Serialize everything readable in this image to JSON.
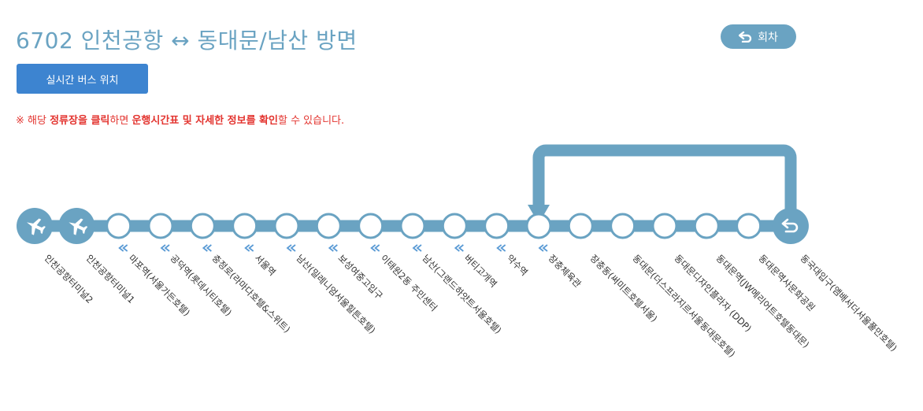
{
  "header": {
    "title": "6702 인천공항 ↔ 동대문/남산 방면",
    "return_button": "회차",
    "live_bus_button": "실시간 버스 위치"
  },
  "notice": {
    "p1": "※ 해당 ",
    "b1": "정류장을 클릭",
    "p2": "하면 ",
    "b2": "운행시간표 및 자세한 정보를 확인",
    "p3": "할 수 있습니다."
  },
  "colors": {
    "route": "#6aa3c2",
    "accent_blue": "#3d84d0",
    "notice_red": "#e3342f",
    "direction_chevron": "#5b9bd5"
  },
  "stops": [
    {
      "name": "인천공항터미널2",
      "icon": "airplane-icon"
    },
    {
      "name": "인천공항터미널1",
      "icon": "airplane-icon"
    },
    {
      "name": "마포역(서울가든호텔)",
      "icon": ""
    },
    {
      "name": "공덕역(롯데시티호텔)",
      "icon": ""
    },
    {
      "name": "충정로(라마다호텔&스위트)",
      "icon": ""
    },
    {
      "name": "서울역",
      "icon": ""
    },
    {
      "name": "남산(밀레니엄서울힐튼호텔)",
      "icon": ""
    },
    {
      "name": "보성여중고입구",
      "icon": ""
    },
    {
      "name": "이태원2동 주민센터",
      "icon": ""
    },
    {
      "name": "남산(그랜드하얏트서울호텔)",
      "icon": ""
    },
    {
      "name": "버티고개역",
      "icon": ""
    },
    {
      "name": "약수역",
      "icon": ""
    },
    {
      "name": "장충체육관",
      "icon": ""
    },
    {
      "name": "장충동(써미트호텔서울)",
      "icon": ""
    },
    {
      "name": "동대문(더스프라지르서울동대문호텔)",
      "icon": ""
    },
    {
      "name": "동대문디자인플라자 (DDP)",
      "icon": ""
    },
    {
      "name": "동대문역(JW메리어트호텔동대문)",
      "icon": ""
    },
    {
      "name": "동대문역사문화공원",
      "icon": ""
    },
    {
      "name": "동국대입구(앰배서더서울풀만호텔)",
      "icon": "return-icon"
    }
  ]
}
